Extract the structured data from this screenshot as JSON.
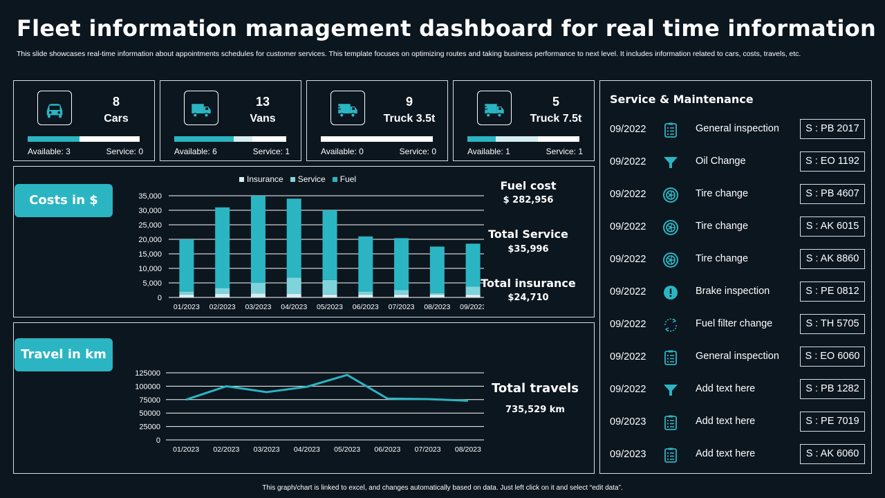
{
  "header": {
    "title": "Fleet information management dashboard for real time information",
    "subtitle": "This slide showcases real-time information about appointments schedules for customer services. This template focuses on optimizing routes and taking business performance to next level. It includes information related to cars, costs, travels, etc."
  },
  "colors": {
    "accent": "#2bb5c2",
    "service_light": "#7fd4dc",
    "insurance_light": "#d7eef1",
    "background": "#0c161f"
  },
  "vehicles": [
    {
      "count": "8",
      "name": "Cars",
      "icon": "car-icon",
      "available_label": "Available:",
      "available": "3",
      "service_label": "Service:",
      "service": "0",
      "available_fraction": 0.46,
      "service_fraction": 0
    },
    {
      "count": "13",
      "name": "Vans",
      "icon": "van-icon",
      "available_label": "Available:",
      "available": "6",
      "service_label": "Service:",
      "service": "1",
      "available_fraction": 0.53,
      "service_fraction": 0.17
    },
    {
      "count": "9",
      "name": "Truck 3.5t",
      "icon": "truck-icon",
      "available_label": "Available:",
      "available": "0",
      "service_label": "Service:",
      "service": "0",
      "available_fraction": 0,
      "service_fraction": 0
    },
    {
      "count": "5",
      "name": "Truck 7.5t",
      "icon": "truck-icon",
      "available_label": "Available:",
      "available": "1",
      "service_label": "Service:",
      "service": "1",
      "available_fraction": 0.25,
      "service_fraction": 0.38
    }
  ],
  "costs": {
    "label": "Costs in $",
    "fuel_cost_label": "Fuel cost",
    "fuel_cost_value": "$ 282,956",
    "total_service_label": "Total Service",
    "total_service_value": "$35,996",
    "total_insurance_label": "Total insurance",
    "total_insurance_value": "$24,710"
  },
  "travel": {
    "label": "Travel in km",
    "total_label": "Total travels",
    "total_value": "735,529 km"
  },
  "chart_data": [
    {
      "type": "bar",
      "stacked": true,
      "categories": [
        "01/2023",
        "02/2023",
        "03/2023",
        "04/2023",
        "05/2023",
        "06/2023",
        "07/2023",
        "08/2023",
        "09/2023"
      ],
      "series": [
        {
          "name": "Insurance",
          "color": "#d7eef1",
          "values": [
            1000,
            1200,
            1300,
            1200,
            1000,
            1000,
            1000,
            1000,
            1000
          ]
        },
        {
          "name": "Service",
          "color": "#7fd4dc",
          "values": [
            1000,
            2000,
            3700,
            5600,
            5000,
            1000,
            1500,
            500,
            2700
          ]
        },
        {
          "name": "Fuel",
          "color": "#2bb5c2",
          "values": [
            18000,
            27800,
            30000,
            27200,
            24000,
            19000,
            17900,
            16000,
            14800
          ]
        }
      ],
      "yticks": [
        "0",
        "5,000",
        "10,000",
        "15,000",
        "20,000",
        "25,000",
        "30,000",
        "35,000"
      ],
      "ylim": [
        0,
        35000
      ],
      "grid": true,
      "legend": "top-center"
    },
    {
      "type": "line",
      "categories": [
        "01/2023",
        "02/2023",
        "03/2023",
        "04/2023",
        "05/2023",
        "06/2023",
        "07/2023",
        "08/2023"
      ],
      "series": [
        {
          "color": "#2bb5c2",
          "values": [
            75000,
            100000,
            89000,
            99000,
            121000,
            77000,
            76000,
            73000
          ]
        }
      ],
      "yticks": [
        "0",
        "25000",
        "50000",
        "75000",
        "100000",
        "125000"
      ],
      "ylim": [
        0,
        125000
      ],
      "grid": true
    }
  ],
  "service": {
    "title": "Service & Maintenance",
    "items": [
      {
        "date": "09/2022",
        "icon": "clipboard-icon",
        "task": "General inspection",
        "id": "S : PB 2017"
      },
      {
        "date": "09/2022",
        "icon": "funnel-icon",
        "task": "Oil Change",
        "id": "S : EO 1192"
      },
      {
        "date": "09/2022",
        "icon": "tire-icon",
        "task": "Tire change",
        "id": "S : PB 4607"
      },
      {
        "date": "09/2022",
        "icon": "tire-icon",
        "task": "Tire change",
        "id": "S : AK 6015"
      },
      {
        "date": "09/2022",
        "icon": "tire-icon",
        "task": "Tire change",
        "id": "S : AK 8860"
      },
      {
        "date": "09/2022",
        "icon": "alert-icon",
        "task": "Brake inspection",
        "id": "S : PE 0812"
      },
      {
        "date": "09/2022",
        "icon": "refresh-icon",
        "task": "Fuel filter change",
        "id": "S : TH 5705"
      },
      {
        "date": "09/2022",
        "icon": "clipboard-icon",
        "task": "General inspection",
        "id": "S : EO 6060"
      },
      {
        "date": "09/2022",
        "icon": "funnel-icon",
        "task": "Add text here",
        "id": "S : PB 1282"
      },
      {
        "date": "09/2023",
        "icon": "clipboard-icon",
        "task": "Add text here",
        "id": "S : PE 7019"
      },
      {
        "date": "09/2023",
        "icon": "clipboard-icon",
        "task": "Add text here",
        "id": "S : AK 6060"
      }
    ]
  },
  "footer": "This graph/chart is linked to excel, and changes automatically based on data. Just left click on it and select “edit data”."
}
